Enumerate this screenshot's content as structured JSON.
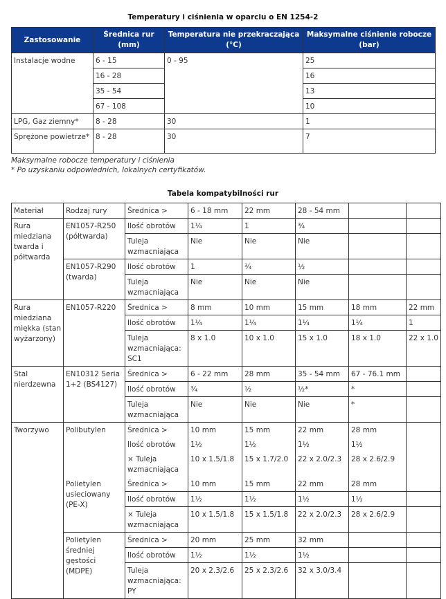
{
  "table1": {
    "title": "Temperatury i ciśnienia w oparciu o EN 1254-2",
    "headers": [
      "Zastosowanie",
      "Średnica rur (mm)",
      "Temperatura nie przekraczająca (°C)",
      "Maksymalne ciśnienie robocze (bar)"
    ],
    "water": {
      "label": "Instalacje wodne",
      "diameters": [
        "6 - 15",
        "16 - 28",
        "35 - 54",
        "67 - 108"
      ],
      "temp": "0 - 95",
      "pressures": [
        "25",
        "16",
        "13",
        "10"
      ]
    },
    "lpg": {
      "label": "LPG, Gaz ziemny*",
      "diameter": "8 - 28",
      "temp": "30",
      "pressure": "1"
    },
    "air": {
      "label": "Sprężone powietrze*",
      "diameter": "8 - 28",
      "temp": "30",
      "pressure": "7"
    },
    "notes": [
      "Maksymalne robocze temperatury i ciśnienia",
      "* Po uzyskaniu odpowiednich, lokalnych certyfikatów."
    ]
  },
  "table2": {
    "title": "Tabela kompatybilności rur",
    "header": [
      "Materiał",
      "Rodzaj rury",
      "Średnica >",
      "6 - 18 mm",
      "22 mm",
      "28 - 54 mm"
    ],
    "copper_hard": {
      "material": "Rura miedziana twarda i półtwarda",
      "r250": {
        "type": "EN1057-R250 (półtwarda)",
        "turns_label": "Ilość obrotów",
        "turns": [
          "1¼",
          "1",
          "¾"
        ],
        "sleeve_label": "Tuleja wzmacniająca",
        "sleeve": [
          "Nie",
          "Nie",
          "Nie"
        ]
      },
      "r290": {
        "type": "EN1057-R290 (twarda)",
        "turns_label": "Ilość obrotów",
        "turns": [
          "1",
          "¾",
          "½"
        ],
        "sleeve_label": "Tuleja wzmacniająca",
        "sleeve": [
          "Nie",
          "Nie",
          "Nie"
        ]
      }
    },
    "copper_soft": {
      "material": "Rura miedziana miękka (stan wyżarzony)",
      "type": "EN1057-R220",
      "diam_label": "Średnica >",
      "diam": [
        "8 mm",
        "10 mm",
        "15 mm",
        "18 mm",
        "22 mm"
      ],
      "turns_label": "Ilość obrotów",
      "turns": [
        "1¼",
        "1¼",
        "1¼",
        "1¼",
        "1"
      ],
      "sleeve_label": "Tuleja wzmacniająca: SC1",
      "sleeve": [
        "8 x 1.0",
        "10 x 1.0",
        "15 x 1.0",
        "18 x 1.0",
        "22 x 1.0"
      ]
    },
    "steel": {
      "material": "Stal nierdzewna",
      "type": "EN10312 Seria 1+2 (BS4127)",
      "diam_label": "Średnica >",
      "diam": [
        "6 - 22 mm",
        "28 mm",
        "35 - 54 mm",
        "67 - 76.1 mm"
      ],
      "turns_label": "Ilość obrotów",
      "turns": [
        "¾",
        "½",
        "½*",
        "*"
      ],
      "sleeve_label": "Tuleja wzmacniająca",
      "sleeve": [
        "Nie",
        "Nie",
        "Nie",
        "*"
      ]
    },
    "plastic": {
      "material": "Tworzywo",
      "pb": {
        "type": "Polibutylen",
        "diam_label": "Średnica >",
        "diam": [
          "10 mm",
          "15 mm",
          "22 mm",
          "28 mm"
        ],
        "turns_label": "Ilość obrotów",
        "turns": [
          "1½",
          "1½",
          "1½",
          "1½"
        ],
        "sleeve_label": "× Tuleja wzmacniająca",
        "sleeve": [
          "10 x 1.5/1.8",
          "15 x 1.7/2.0",
          "22 x 2.0/2.3",
          "28 x 2.6/2.9"
        ]
      },
      "pex": {
        "type": "Polietylen usieciowany (PE-X)",
        "diam_label": "Średnica >",
        "diam": [
          "10 mm",
          "15 mm",
          "22 mm",
          "28 mm"
        ],
        "turns_label": "Ilość obrotów",
        "turns": [
          "1½",
          "1½",
          "1½",
          "1½"
        ],
        "sleeve_label": "× Tuleja wzmacniająca",
        "sleeve": [
          "10 x 1.5/1.8",
          "15 x 1.5/1.8",
          "22 x 2.0/2.3",
          "28 x 2.6/2.9"
        ]
      },
      "mdpe": {
        "type": "Polietylen średniej gęstości (MDPE)",
        "diam_label": "Średnica >",
        "diam": [
          "20 mm",
          "25 mm",
          "32 mm"
        ],
        "turns_label": "Ilość obrotów",
        "turns": [
          "1½",
          "1½",
          "1½"
        ],
        "sleeve_label": "Tuleja wzmacniająca: PY",
        "sleeve": [
          "20 x 2.3/2.6",
          "25 x 2.3/2.6",
          "32 x 3.0/3.4"
        ]
      }
    }
  }
}
